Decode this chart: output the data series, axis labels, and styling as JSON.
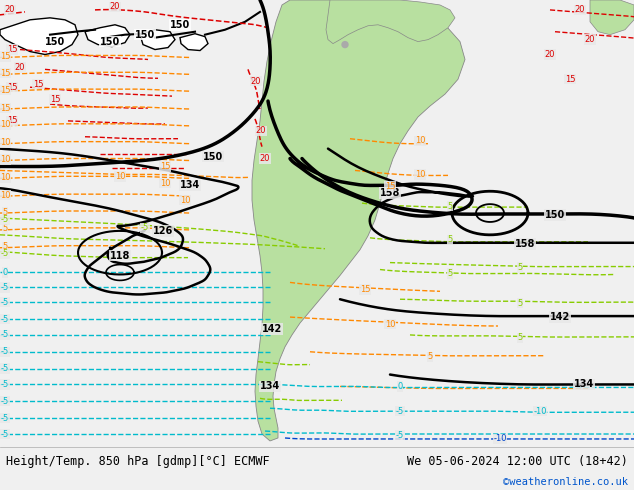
{
  "title_left": "Height/Temp. 850 hPa [gdmp][°C] ECMWF",
  "title_right": "We 05-06-2024 12:00 UTC (18+42)",
  "watermark": "©weatheronline.co.uk",
  "bg_color": "#f0f0f0",
  "ocean_color": "#e8e8e8",
  "land_color": "#b8e0a0",
  "land_gray": "#c0c0c0",
  "fig_width": 6.34,
  "fig_height": 4.9,
  "dpi": 100
}
